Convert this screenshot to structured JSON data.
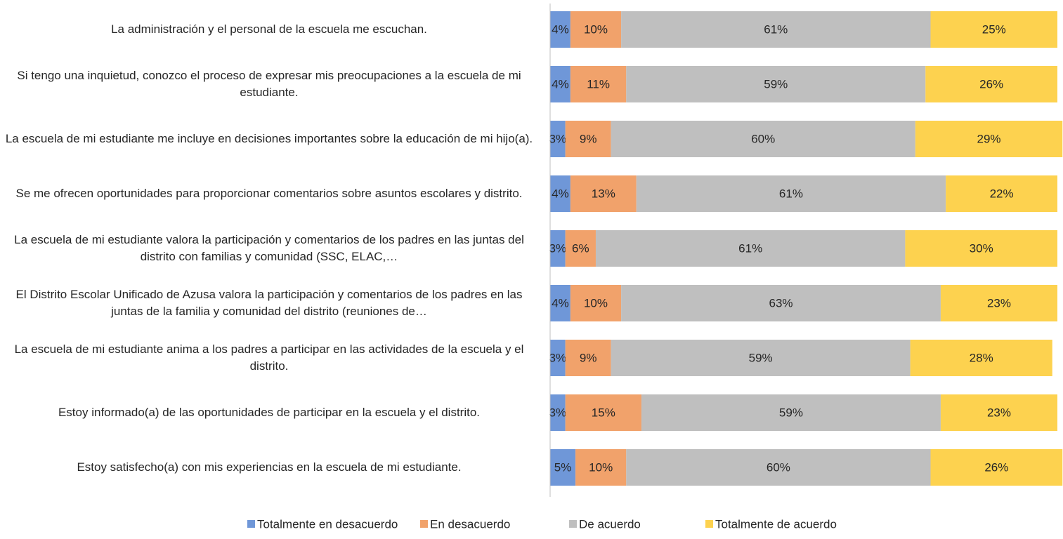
{
  "chart_data": {
    "type": "stacked-bar-horizontal",
    "categories": [
      "La administración y el personal de la escuela me escuchan.",
      "Si tengo una inquietud, conozco el proceso de expresar mis preocupaciones a la escuela de mi estudiante.",
      "La escuela de mi estudiante me incluye en decisiones importantes sobre la educación de mi hijo(a).",
      "Se me ofrecen oportunidades para proporcionar comentarios sobre asuntos escolares y distrito.",
      "La escuela de mi estudiante valora la participación y comentarios de los padres en las juntas del distrito con familias y comunidad (SSC, ELAC,…",
      "El Distrito Escolar Unificado de Azusa valora la participación y comentarios de los padres en las juntas de la familia y comunidad del distrito (reuniones de…",
      "La escuela de mi estudiante anima a los padres a participar en las actividades de la escuela y el distrito.",
      "Estoy informado(a) de las oportunidades de participar en la escuela y el distrito.",
      "Estoy satisfecho(a) con mis experiencias en la escuela de mi estudiante."
    ],
    "series": [
      {
        "name": "Totalmente en desacuerdo",
        "color": "#6f97d8",
        "values": [
          4,
          4,
          3,
          4,
          3,
          4,
          3,
          3,
          5
        ],
        "value_labels": [
          "4%",
          "4%",
          "3%",
          "4%",
          "3%",
          "4%",
          "3%",
          "3%",
          "5%"
        ]
      },
      {
        "name": "En desacuerdo",
        "color": "#f1a26b",
        "values": [
          10,
          11,
          9,
          13,
          6,
          10,
          9,
          15,
          10
        ],
        "value_labels": [
          "10%",
          "11%",
          "9%",
          "13%",
          "6%",
          "10%",
          "9%",
          "15%",
          "10%"
        ]
      },
      {
        "name": "De acuerdo",
        "color": "#bfbfbf",
        "values": [
          61,
          59,
          60,
          61,
          61,
          63,
          59,
          59,
          60
        ],
        "value_labels": [
          "61%",
          "59%",
          "60%",
          "61%",
          "61%",
          "63%",
          "59%",
          "59%",
          "60%"
        ]
      },
      {
        "name": "Totalmente de acuerdo",
        "color": "#fdd24f",
        "values": [
          25,
          26,
          29,
          22,
          30,
          23,
          28,
          23,
          26
        ],
        "value_labels": [
          "25%",
          "26%",
          "29%",
          "22%",
          "30%",
          "23%",
          "28%",
          "23%",
          "26%"
        ]
      }
    ],
    "xlim": [
      0,
      100
    ],
    "legend": "bottom"
  }
}
